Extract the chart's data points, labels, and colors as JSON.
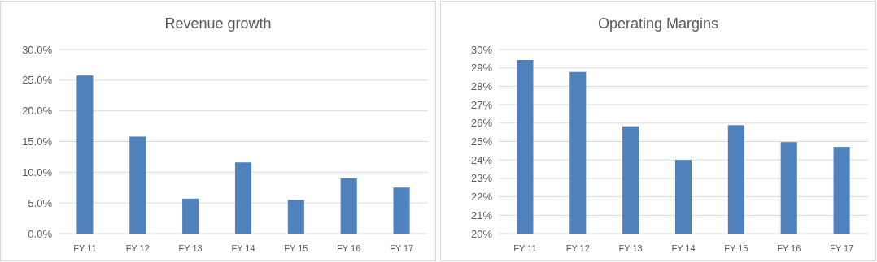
{
  "chart_data": [
    {
      "type": "bar",
      "title": "Revenue growth",
      "categories": [
        "FY 11",
        "FY 12",
        "FY 13",
        "FY 14",
        "FY 15",
        "FY 16",
        "FY 17"
      ],
      "values": [
        25.75,
        15.8,
        5.7,
        11.6,
        5.5,
        9.0,
        7.5
      ],
      "color": "#4f81bd",
      "ylim": [
        0,
        30
      ],
      "yticks": [
        {
          "value": 0,
          "label": "0.0%"
        },
        {
          "value": 5,
          "label": "5.0%"
        },
        {
          "value": 10,
          "label": "10.0%"
        },
        {
          "value": 15,
          "label": "15.0%"
        },
        {
          "value": 20,
          "label": "20.0%"
        },
        {
          "value": 25,
          "label": "25.0%"
        },
        {
          "value": 30,
          "label": "30.0%"
        }
      ],
      "grid": "y"
    },
    {
      "type": "bar",
      "title": "Operating Margins",
      "categories": [
        "FY 11",
        "FY 12",
        "FY 13",
        "FY 14",
        "FY 15",
        "FY 16",
        "FY 17"
      ],
      "values": [
        29.43,
        28.78,
        25.83,
        24.0,
        25.89,
        24.97,
        24.71
      ],
      "color": "#4f81bd",
      "ylim": [
        20,
        30
      ],
      "yticks": [
        {
          "value": 20,
          "label": "20%"
        },
        {
          "value": 21,
          "label": "21%"
        },
        {
          "value": 22,
          "label": "22%"
        },
        {
          "value": 23,
          "label": "23%"
        },
        {
          "value": 24,
          "label": "24%"
        },
        {
          "value": 25,
          "label": "25%"
        },
        {
          "value": 26,
          "label": "26%"
        },
        {
          "value": 27,
          "label": "27%"
        },
        {
          "value": 28,
          "label": "28%"
        },
        {
          "value": 29,
          "label": "29%"
        },
        {
          "value": 30,
          "label": "30%"
        }
      ],
      "grid": "y"
    }
  ]
}
